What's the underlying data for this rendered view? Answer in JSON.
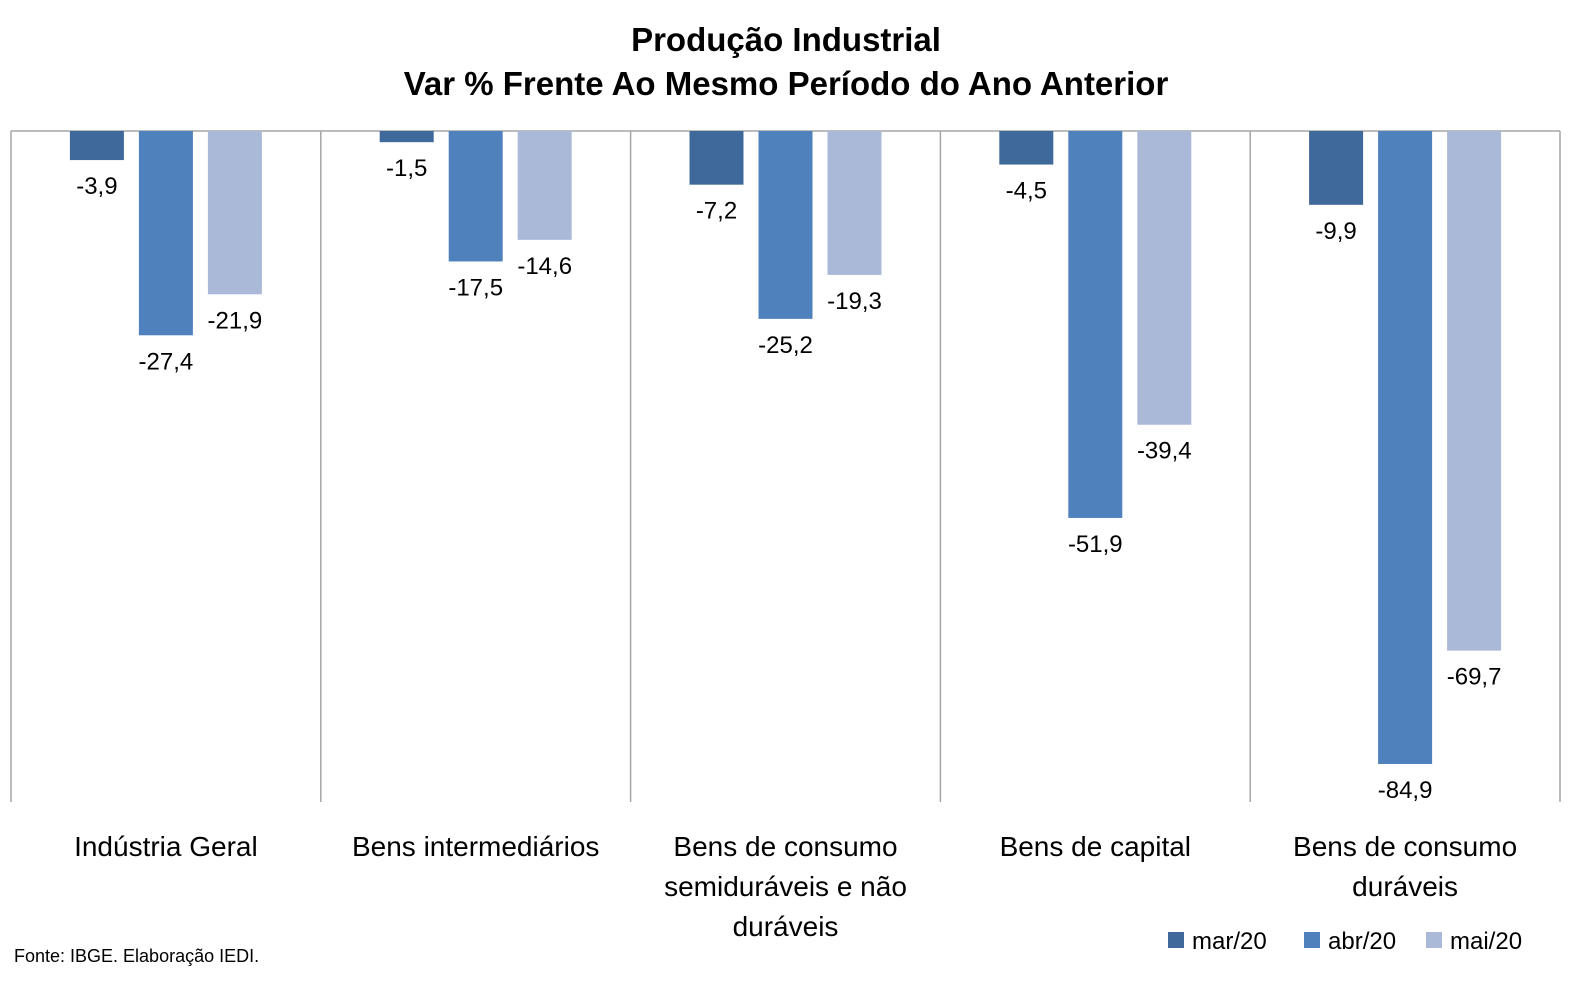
{
  "chart_data": {
    "type": "bar",
    "title": "Produção Industrial",
    "subtitle": "Var % Frente Ao Mesmo Período do Ano Anterior",
    "categories": [
      [
        "Indústria Geral"
      ],
      [
        "Bens intermediários"
      ],
      [
        "Bens de consumo",
        "semiduráveis e não",
        "duráveis"
      ],
      [
        "Bens de capital"
      ],
      [
        "Bens de consumo",
        "duráveis"
      ]
    ],
    "series": [
      {
        "name": "mar/20",
        "color": "#3F689B",
        "values": [
          -3.9,
          -1.5,
          -7.2,
          -4.5,
          -9.9
        ],
        "labels": [
          "-3,9",
          "-1,5",
          "-7,2",
          "-4,5",
          "-9,9"
        ]
      },
      {
        "name": "abr/20",
        "color": "#4F81BD",
        "values": [
          -27.4,
          -17.5,
          -25.2,
          -51.9,
          -84.9
        ],
        "labels": [
          "-27,4",
          "-17,5",
          "-25,2",
          "-51,9",
          "-84,9"
        ]
      },
      {
        "name": "mai/20",
        "color": "#AAB9D8",
        "values": [
          -21.9,
          -14.6,
          -19.3,
          -39.4,
          -69.7
        ],
        "labels": [
          "-21,9",
          "-14,6",
          "-19,3",
          "-39,4",
          "-69,7"
        ]
      }
    ],
    "ylim": [
      -90,
      0
    ],
    "grid": false,
    "legend_position": "bottom-right"
  },
  "source": "Fonte: IBGE. Elaboração IEDI."
}
